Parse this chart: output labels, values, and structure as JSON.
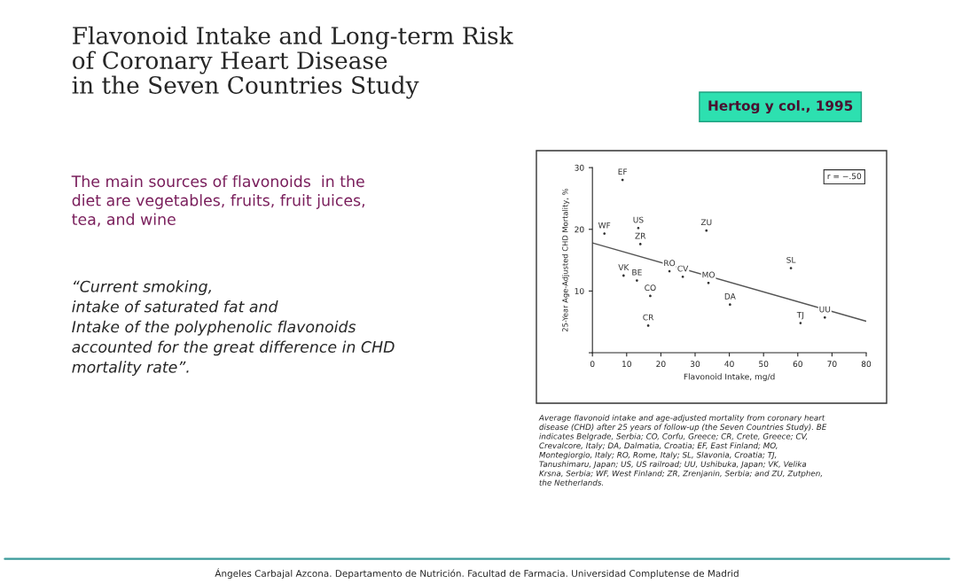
{
  "chart_data": {
    "type": "scatter",
    "title": "Flavonoid Intake and Long-term Risk\nof Coronary Heart Disease\nin the Seven Countries Study",
    "xlabel": "Flavonoid Intake, mg/d",
    "ylabel": "25-Year Age-Adjusted CHD Mortality, %",
    "xlim": [
      0,
      80
    ],
    "xticks": [
      0,
      10,
      20,
      30,
      40,
      50,
      60,
      70,
      80
    ],
    "ylim": [
      0,
      30
    ],
    "yticks": [
      {
        "value": 0,
        "label": null
      },
      10,
      20,
      30
    ],
    "grid": false,
    "series": [
      {
        "type": "scatter",
        "color": "#333333",
        "marker": "circle",
        "x": [
          8.8,
          3.5,
          13.4,
          14.0,
          33.3,
          58,
          9.1,
          13.0,
          22.5,
          26.4,
          33.9,
          16.9,
          40.2,
          16.3,
          60.8,
          67.9
        ],
        "values": [
          28.0,
          19.3,
          20.2,
          17.6,
          19.8,
          13.7,
          12.5,
          11.7,
          13.2,
          12.3,
          11.3,
          9.2,
          7.8,
          4.4,
          4.8,
          5.7
        ],
        "value_labels": [
          "EF",
          "WF",
          "US",
          "ZR",
          "ZU",
          "SL",
          "VK",
          "BE",
          "RO",
          "CV",
          "MO",
          "CO",
          "DA",
          "CR",
          "TJ",
          "UU"
        ]
      },
      {
        "type": "line",
        "color": "#555555",
        "x": [
          0,
          80
        ],
        "values": [
          17.8,
          5.1
        ]
      }
    ],
    "annotations": [
      "r = −.50",
      "Hertog y col., 1995",
      "The main sources of flavonoids  in the\ndiet are vegetables, fruits, fruit juices,\ntea, and wine",
      "“Current smoking,\nintake of saturated fat and\nIntake of the polyphenolic flavonoids\naccounted for the great difference in CHD\nmortality rate”.",
      "Average flavonoid intake and age-adjusted mortality from coronary heart\ndisease (CHD) after 25 years of follow-up (the Seven Countries Study). BE\nindicates Belgrade, Serbia; CO, Corfu, Greece; CR, Crete, Greece; CV,\nCrevalcore, Italy; DA, Dalmatia, Croatia; EF, East Finland; MO,\nMontegiorgio, Italy; RO, Rome, Italy; SL, Slavonia, Croatia; TJ,\nTanushimaru, Japan; US, US railroad; UU, Ushibuka, Japan; VK, Velika\nKrsna, Serbia; WF, West Finland; ZR, Zrenjanin, Serbia; and ZU, Zutphen,\nthe Netherlands.",
      "Ángeles Carbajal Azcona. Departamento de Nutrición. Facultad de Farmacia. Universidad Complutense de Madrid"
    ]
  }
}
